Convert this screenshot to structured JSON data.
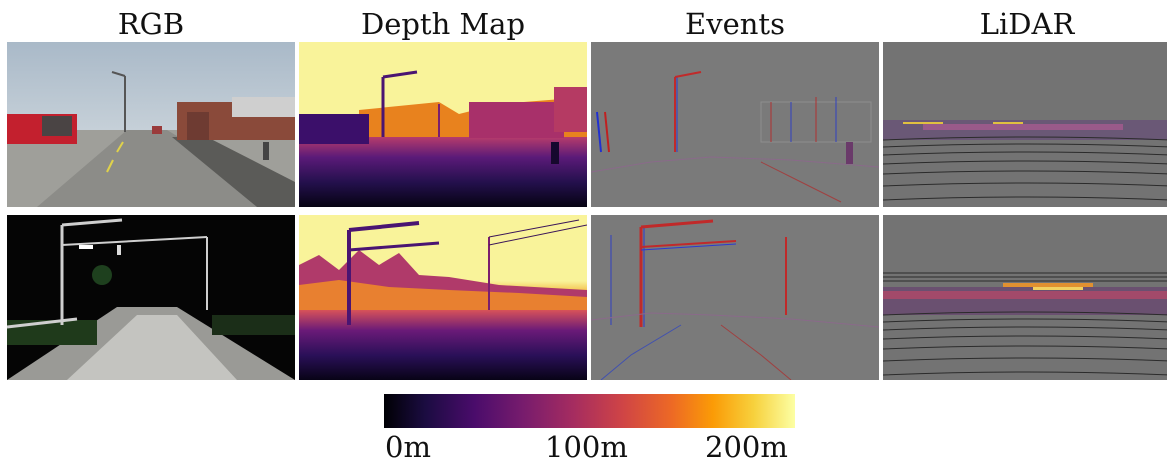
{
  "columns": [
    "RGB",
    "Depth Map",
    "Events",
    "LiDAR"
  ],
  "colorbar": {
    "ticks": [
      "0m",
      "100m",
      "200m"
    ],
    "colormap": "inferno"
  },
  "colors": {
    "depth_near": "#000004",
    "depth_far": "#fcffa4",
    "event_positive": "#ff2020",
    "event_negative": "#2040ff",
    "event_background": "#777777"
  }
}
